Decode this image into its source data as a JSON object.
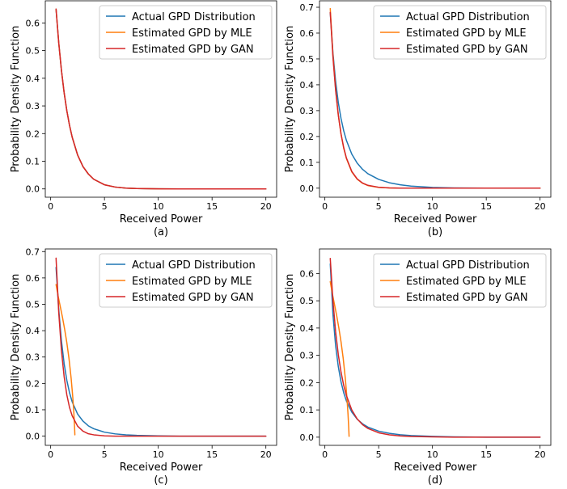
{
  "colors": {
    "actual": "#1f77b4",
    "mle": "#ff7f0e",
    "gan": "#d62728",
    "legend_border": "#cccccc",
    "axes": "#000000"
  },
  "chart_data": [
    {
      "type": "line",
      "panel_label": "(a)",
      "xlabel": "Received Power",
      "ylabel": "Probability Density Function",
      "xlim": [
        -0.5,
        21
      ],
      "ylim": [
        -0.03,
        0.68
      ],
      "xticks": [
        0,
        5,
        10,
        15,
        20
      ],
      "yticks": [
        0.0,
        0.1,
        0.2,
        0.3,
        0.4,
        0.5,
        0.6
      ],
      "grid": false,
      "legend_position": "top-right",
      "series": [
        {
          "name": "Actual GPD Distribution",
          "color_key": "actual",
          "x": [
            0.5,
            0.75,
            1,
            1.25,
            1.5,
            1.75,
            2,
            2.5,
            3,
            3.5,
            4,
            5,
            6,
            7,
            8,
            10,
            12,
            15,
            20
          ],
          "y": [
            0.65,
            0.528,
            0.429,
            0.348,
            0.283,
            0.23,
            0.187,
            0.123,
            0.081,
            0.054,
            0.035,
            0.015,
            0.0067,
            0.0029,
            0.0013,
            0.0002,
            0.0,
            0.0,
            0.0
          ]
        },
        {
          "name": "Estimated GPD by MLE",
          "color_key": "mle",
          "x": [
            0.5,
            0.75,
            1,
            1.25,
            1.5,
            1.75,
            2,
            2.5,
            3,
            3.5,
            4,
            5,
            6,
            7,
            8,
            10,
            12,
            15,
            20
          ],
          "y": [
            0.65,
            0.528,
            0.429,
            0.348,
            0.283,
            0.23,
            0.187,
            0.123,
            0.081,
            0.054,
            0.035,
            0.015,
            0.0067,
            0.0029,
            0.0013,
            0.0002,
            0.0,
            0.0,
            0.0
          ]
        },
        {
          "name": "Estimated GPD by GAN",
          "color_key": "gan",
          "x": [
            0.5,
            0.75,
            1,
            1.25,
            1.5,
            1.75,
            2,
            2.5,
            3,
            3.5,
            4,
            5,
            6,
            7,
            8,
            10,
            12,
            15,
            20
          ],
          "y": [
            0.65,
            0.528,
            0.429,
            0.348,
            0.283,
            0.23,
            0.187,
            0.123,
            0.081,
            0.054,
            0.035,
            0.015,
            0.0067,
            0.0029,
            0.0013,
            0.0002,
            0.0,
            0.0,
            0.0
          ]
        }
      ]
    },
    {
      "type": "line",
      "panel_label": "(b)",
      "xlabel": "Received Power",
      "ylabel": "Probability Density Function",
      "xlim": [
        -0.5,
        21
      ],
      "ylim": [
        -0.035,
        0.725
      ],
      "xticks": [
        0,
        5,
        10,
        15,
        20
      ],
      "yticks": [
        0.0,
        0.1,
        0.2,
        0.3,
        0.4,
        0.5,
        0.6,
        0.7
      ],
      "grid": false,
      "legend_position": "top-right",
      "series": [
        {
          "name": "Actual GPD Distribution",
          "color_key": "actual",
          "x": [
            0.5,
            0.75,
            1,
            1.25,
            1.5,
            1.75,
            2,
            2.5,
            3,
            3.5,
            4,
            5,
            6,
            7,
            8,
            10,
            12,
            15,
            20
          ],
          "y": [
            0.68,
            0.524,
            0.413,
            0.331,
            0.27,
            0.222,
            0.185,
            0.132,
            0.097,
            0.073,
            0.056,
            0.034,
            0.021,
            0.013,
            0.008,
            0.003,
            0.001,
            0.0,
            0.0
          ]
        },
        {
          "name": "Estimated GPD by MLE",
          "color_key": "mle",
          "x": [
            0.5,
            0.75,
            1,
            1.25,
            1.5,
            1.75,
            2,
            2.5,
            3,
            3.5,
            4,
            5,
            6,
            7,
            8,
            10,
            12,
            15,
            20
          ],
          "y": [
            0.695,
            0.515,
            0.382,
            0.283,
            0.21,
            0.155,
            0.115,
            0.063,
            0.035,
            0.019,
            0.01,
            0.003,
            0.001,
            0.0,
            0.0,
            0.0,
            0.0,
            0.0,
            0.0
          ]
        },
        {
          "name": "Estimated GPD by GAN",
          "color_key": "gan",
          "x": [
            0.5,
            0.75,
            1,
            1.25,
            1.5,
            1.75,
            2,
            2.5,
            3,
            3.5,
            4,
            5,
            6,
            7,
            8,
            10,
            12,
            15,
            20
          ],
          "y": [
            0.68,
            0.507,
            0.378,
            0.282,
            0.21,
            0.157,
            0.117,
            0.065,
            0.036,
            0.02,
            0.011,
            0.0035,
            0.001,
            0.0,
            0.0,
            0.0,
            0.0,
            0.0,
            0.0
          ]
        }
      ]
    },
    {
      "type": "line",
      "panel_label": "(c)",
      "xlabel": "Received Power",
      "ylabel": "Probability Density Function",
      "xlim": [
        -0.5,
        21
      ],
      "ylim": [
        -0.035,
        0.71
      ],
      "xticks": [
        0,
        5,
        10,
        15,
        20
      ],
      "yticks": [
        0.0,
        0.1,
        0.2,
        0.3,
        0.4,
        0.5,
        0.6,
        0.7
      ],
      "grid": false,
      "legend_position": "top-right",
      "series": [
        {
          "name": "Actual GPD Distribution",
          "color_key": "actual",
          "x": [
            0.5,
            0.75,
            1,
            1.25,
            1.5,
            1.75,
            2,
            2.5,
            3,
            3.5,
            4,
            5,
            6,
            7,
            8,
            10,
            12,
            15,
            20
          ],
          "y": [
            0.64,
            0.48,
            0.362,
            0.275,
            0.212,
            0.165,
            0.13,
            0.084,
            0.057,
            0.039,
            0.028,
            0.015,
            0.0085,
            0.005,
            0.003,
            0.001,
            0.0,
            0.0,
            0.0
          ]
        },
        {
          "name": "Estimated GPD by MLE",
          "color_key": "mle",
          "x": [
            0.5,
            0.7,
            0.9,
            1.1,
            1.3,
            1.5,
            1.7,
            1.9,
            2.05,
            2.15,
            2.22,
            2.25
          ],
          "y": [
            0.575,
            0.53,
            0.49,
            0.45,
            0.405,
            0.355,
            0.295,
            0.22,
            0.15,
            0.09,
            0.035,
            0.005
          ]
        },
        {
          "name": "Estimated GPD by GAN",
          "color_key": "gan",
          "x": [
            0.5,
            0.75,
            1,
            1.25,
            1.5,
            1.75,
            2,
            2.5,
            3,
            3.5,
            4,
            5,
            6,
            7,
            8,
            10,
            12,
            15,
            20
          ],
          "y": [
            0.675,
            0.468,
            0.325,
            0.226,
            0.157,
            0.109,
            0.077,
            0.038,
            0.019,
            0.009,
            0.005,
            0.001,
            0.0,
            0.0,
            0.0,
            0.0,
            0.0,
            0.0,
            0.0
          ]
        }
      ]
    },
    {
      "type": "line",
      "panel_label": "(d)",
      "xlabel": "Received Power",
      "ylabel": "Probability Density Function",
      "xlim": [
        -0.5,
        21
      ],
      "ylim": [
        -0.03,
        0.69
      ],
      "xticks": [
        0,
        5,
        10,
        15,
        20
      ],
      "yticks": [
        0.0,
        0.1,
        0.2,
        0.3,
        0.4,
        0.5,
        0.6
      ],
      "grid": false,
      "legend_position": "top-right",
      "series": [
        {
          "name": "Actual GPD Distribution",
          "color_key": "actual",
          "x": [
            0.5,
            0.75,
            1,
            1.25,
            1.5,
            1.75,
            2,
            2.5,
            3,
            3.5,
            4,
            5,
            6,
            7,
            8,
            10,
            12,
            15,
            20
          ],
          "y": [
            0.635,
            0.45,
            0.335,
            0.258,
            0.203,
            0.163,
            0.133,
            0.092,
            0.066,
            0.049,
            0.037,
            0.022,
            0.014,
            0.009,
            0.006,
            0.003,
            0.001,
            0.0,
            0.0
          ]
        },
        {
          "name": "Estimated GPD by MLE",
          "color_key": "mle",
          "x": [
            0.5,
            0.7,
            0.9,
            1.1,
            1.3,
            1.5,
            1.7,
            1.9,
            2.05,
            2.15,
            2.22,
            2.25
          ],
          "y": [
            0.57,
            0.525,
            0.485,
            0.445,
            0.4,
            0.35,
            0.29,
            0.215,
            0.145,
            0.085,
            0.032,
            0.003
          ]
        },
        {
          "name": "Estimated GPD by GAN",
          "color_key": "gan",
          "x": [
            0.5,
            0.75,
            1,
            1.25,
            1.5,
            1.75,
            2,
            2.5,
            3,
            3.5,
            4,
            5,
            6,
            7,
            8,
            10,
            12,
            15,
            20
          ],
          "y": [
            0.655,
            0.5,
            0.386,
            0.302,
            0.239,
            0.19,
            0.153,
            0.1,
            0.067,
            0.046,
            0.032,
            0.016,
            0.0085,
            0.0045,
            0.0025,
            0.001,
            0.0,
            0.0,
            0.0
          ]
        }
      ]
    }
  ]
}
